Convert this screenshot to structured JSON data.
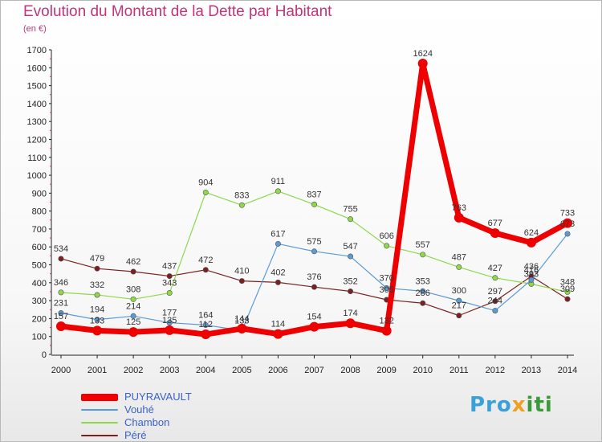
{
  "chart_data": {
    "type": "line",
    "title": "Evolution du Montant de la Dette par Habitant",
    "subtitle": "(en €)",
    "xlabel": "",
    "ylabel": "",
    "categories": [
      "2000",
      "2001",
      "2002",
      "2003",
      "2004",
      "2005",
      "2006",
      "2007",
      "2008",
      "2009",
      "2010",
      "2011",
      "2012",
      "2013",
      "2014"
    ],
    "y_ticks": [
      "0",
      "100",
      "200",
      "300",
      "400",
      "500",
      "600",
      "700",
      "800",
      "900",
      "1000",
      "1100",
      "1200",
      "1300",
      "1400",
      "1500",
      "1600",
      "1700"
    ],
    "ylim": [
      0,
      1700
    ],
    "grid": false,
    "legend_position": "bottom-left",
    "series": [
      {
        "name": "PUYRAVAULT",
        "color": "#ee0000",
        "values": [
          157,
          133,
          125,
          135,
          112,
          144,
          114,
          154,
          174,
          132,
          1624,
          763,
          677,
          624,
          733
        ],
        "labels": [
          "157",
          "133",
          "125",
          "135",
          "112",
          "144",
          "114",
          "154",
          "174",
          "132",
          "1624",
          "763",
          "677",
          "624",
          "733"
        ]
      },
      {
        "name": "Vouhé",
        "color": "#5b9bd5",
        "values": [
          231,
          194,
          214,
          177,
          164,
          133,
          617,
          575,
          547,
          370,
          353,
          300,
          244,
          416,
          673
        ],
        "labels": [
          "231",
          "194",
          "214",
          "177",
          "164",
          "133",
          "617",
          "575",
          "547",
          "370",
          "353",
          "300",
          "244",
          "416",
          "673"
        ]
      },
      {
        "name": "Chambon",
        "color": "#8ed84a",
        "values": [
          346,
          332,
          308,
          343,
          904,
          833,
          911,
          837,
          755,
          606,
          557,
          487,
          427,
          393,
          348
        ],
        "labels": [
          "346",
          "332",
          "308",
          "343",
          "904",
          "833",
          "911",
          "837",
          "755",
          "606",
          "557",
          "487",
          "427",
          "393",
          "348"
        ]
      },
      {
        "name": "Péré",
        "color": "#7a2020",
        "values": [
          534,
          479,
          462,
          437,
          472,
          410,
          402,
          376,
          352,
          305,
          286,
          217,
          297,
          436,
          309
        ],
        "labels": [
          "534",
          "479",
          "462",
          "437",
          "472",
          "410",
          "402",
          "376",
          "352",
          "305",
          "286",
          "217",
          "297",
          "436",
          "309"
        ]
      }
    ]
  },
  "logo": {
    "part1": "Pro",
    "part2": "x",
    "part3": "iti"
  }
}
